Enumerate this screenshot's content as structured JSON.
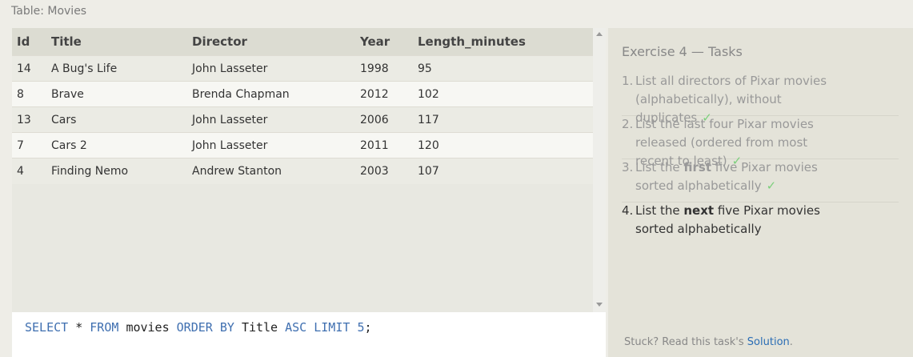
{
  "caption": "Table: Movies",
  "table": {
    "headers": [
      "Id",
      "Title",
      "Director",
      "Year",
      "Length_minutes"
    ],
    "rows": [
      [
        "14",
        "A Bug's Life",
        "John Lasseter",
        "1998",
        "95"
      ],
      [
        "8",
        "Brave",
        "Brenda Chapman",
        "2012",
        "102"
      ],
      [
        "13",
        "Cars",
        "John Lasseter",
        "2006",
        "117"
      ],
      [
        "7",
        "Cars 2",
        "John Lasseter",
        "2011",
        "120"
      ],
      [
        "4",
        "Finding Nemo",
        "Andrew Stanton",
        "2003",
        "107"
      ]
    ]
  },
  "query": {
    "tokens": [
      {
        "text": "SELECT",
        "color": "#3f6fb0"
      },
      {
        "text": "*",
        "color": "#222222"
      },
      {
        "text": "FROM",
        "color": "#3f6fb0"
      },
      {
        "text": "movies",
        "color": "#222222"
      },
      {
        "text": "ORDER BY",
        "color": "#3f6fb0"
      },
      {
        "text": "Title",
        "color": "#222222"
      },
      {
        "text": "ASC",
        "color": "#3f6fb0"
      },
      {
        "text": "LIMIT",
        "color": "#3f6fb0"
      },
      {
        "text": "5",
        "color": "#3f6fb0"
      },
      {
        "text": ";",
        "color": "#222222"
      }
    ]
  },
  "exercise": {
    "title": "Exercise 4 — Tasks",
    "tasks": [
      {
        "number": "1.",
        "before": "List all directors of Pixar movies (alphabetically), without duplicates",
        "check": "✓"
      },
      {
        "number": "2.",
        "before": "List the last four Pixar movies released (ordered from most recent to least)",
        "check": "✓"
      },
      {
        "number": "3.",
        "before": "List the ",
        "bold": "first",
        "after": " five Pixar movies sorted alphabetically",
        "check": "✓"
      },
      {
        "number": "4.",
        "before": "List the ",
        "bold": "next",
        "after": " five Pixar movies sorted alphabetically"
      }
    ],
    "hint": {
      "before": "Stuck? Read this task's ",
      "link": "Solution",
      "after": "."
    }
  }
}
